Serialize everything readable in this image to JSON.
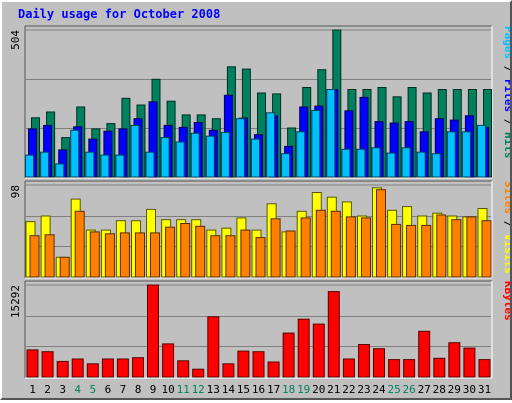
{
  "title": "Daily usage for October 2008",
  "colors": {
    "hits": "#00805c",
    "files": "#0000ff",
    "pages": "#00c0ff",
    "visits": "#ffff00",
    "sites": "#ff8000",
    "kbytes": "#ff0000",
    "title": "#0000ff",
    "weekend_label": "#00805c",
    "weekday_label": "#000000",
    "panel_bg": "#c0c0c0"
  },
  "chart_data": [
    {
      "type": "bar",
      "title": "Daily usage for October 2008",
      "ytick_label": "504",
      "ymax": 504,
      "grid": true,
      "legend": [
        {
          "name": "Pages",
          "color": "#00c0ff"
        },
        {
          "sep": " / "
        },
        {
          "name": "Files",
          "color": "#0000ff"
        },
        {
          "sep": " / "
        },
        {
          "name": "Hits",
          "color": "#00805c"
        }
      ],
      "categories": [
        "1",
        "2",
        "3",
        "4",
        "5",
        "6",
        "7",
        "8",
        "9",
        "10",
        "11",
        "12",
        "13",
        "14",
        "15",
        "16",
        "17",
        "18",
        "19",
        "20",
        "21",
        "22",
        "23",
        "24",
        "25",
        "26",
        "27",
        "28",
        "29",
        "30",
        "31"
      ],
      "series": [
        {
          "name": "Hits",
          "color": "#00805c",
          "values": [
            203,
            223,
            135,
            240,
            165,
            183,
            270,
            247,
            335,
            260,
            213,
            213,
            200,
            378,
            370,
            288,
            285,
            168,
            307,
            368,
            504,
            300,
            300,
            307,
            275,
            307,
            288,
            300,
            300,
            300,
            300
          ]
        },
        {
          "name": "Files",
          "color": "#0000ff",
          "values": [
            165,
            177,
            93,
            172,
            130,
            157,
            165,
            200,
            258,
            177,
            170,
            187,
            160,
            280,
            202,
            145,
            210,
            105,
            240,
            243,
            300,
            227,
            273,
            190,
            185,
            190,
            155,
            200,
            195,
            210,
            170
          ]
        },
        {
          "name": "Pages",
          "color": "#00c0ff",
          "values": [
            75,
            85,
            45,
            160,
            85,
            75,
            75,
            177,
            85,
            135,
            120,
            150,
            140,
            153,
            200,
            130,
            220,
            80,
            155,
            228,
            300,
            95,
            95,
            100,
            82,
            100,
            85,
            80,
            155,
            155,
            177
          ]
        }
      ]
    },
    {
      "type": "bar",
      "ytick_label": "98",
      "ymax": 98,
      "grid": true,
      "legend": [
        {
          "name": "Sites",
          "color": "#ff8000"
        },
        {
          "sep": " / "
        },
        {
          "name": "Visits",
          "color": "#ffff00"
        }
      ],
      "categories": [
        "1",
        "2",
        "3",
        "4",
        "5",
        "6",
        "7",
        "8",
        "9",
        "10",
        "11",
        "12",
        "13",
        "14",
        "15",
        "16",
        "17",
        "18",
        "19",
        "20",
        "21",
        "22",
        "23",
        "24",
        "25",
        "26",
        "27",
        "28",
        "29",
        "30",
        "31"
      ],
      "series": [
        {
          "name": "Visits",
          "color": "#ffff00",
          "values": [
            59,
            65,
            21,
            83,
            50,
            50,
            60,
            60,
            72,
            61,
            61,
            61,
            50,
            52,
            63,
            50,
            78,
            48,
            70,
            90,
            85,
            80,
            65,
            95,
            71,
            75,
            65,
            68,
            65,
            64,
            73
          ]
        },
        {
          "name": "Sites",
          "color": "#ff8000",
          "values": [
            44,
            45,
            21,
            70,
            48,
            46,
            47,
            47,
            47,
            53,
            57,
            54,
            44,
            44,
            50,
            42,
            62,
            49,
            63,
            71,
            70,
            64,
            63,
            93,
            56,
            55,
            55,
            66,
            61,
            64,
            60
          ]
        }
      ]
    },
    {
      "type": "bar",
      "ytick_label": "15292",
      "ymax": 15292,
      "grid": true,
      "legend": [
        {
          "name": "KBytes",
          "color": "#ff0000"
        }
      ],
      "categories": [
        "1",
        "2",
        "3",
        "4",
        "5",
        "6",
        "7",
        "8",
        "9",
        "10",
        "11",
        "12",
        "13",
        "14",
        "15",
        "16",
        "17",
        "18",
        "19",
        "20",
        "21",
        "22",
        "23",
        "24",
        "25",
        "26",
        "27",
        "28",
        "29",
        "30",
        "31"
      ],
      "series": [
        {
          "name": "KBytes",
          "color": "#ff0000",
          "values": [
            4500,
            4200,
            2600,
            3000,
            2200,
            3000,
            3000,
            3200,
            15292,
            5500,
            2700,
            1300,
            10000,
            2200,
            4300,
            4200,
            2500,
            7300,
            9600,
            8800,
            14200,
            3000,
            5400,
            4700,
            2900,
            2900,
            7600,
            3100,
            5700,
            4800,
            2900
          ]
        }
      ]
    }
  ],
  "weekend_days": [
    "4",
    "5",
    "11",
    "12",
    "18",
    "19",
    "25",
    "26"
  ]
}
